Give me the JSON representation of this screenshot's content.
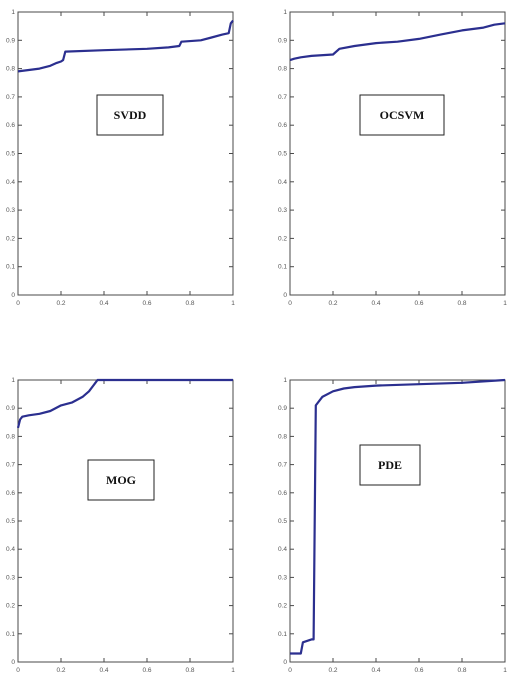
{
  "chart_data": [
    {
      "type": "line",
      "label": "SVDD",
      "xlim": [
        0,
        1
      ],
      "ylim": [
        0,
        1
      ],
      "xticks": [
        "0",
        "0.2",
        "0.4",
        "0.6",
        "0.8",
        "1"
      ],
      "yticks": [
        "0",
        "0.1",
        "0.2",
        "0.3",
        "0.4",
        "0.5",
        "0.6",
        "0.7",
        "0.8",
        "0.9",
        "1"
      ],
      "grid": false,
      "color": "#2b2f8f",
      "series": [
        {
          "x": [
            0,
            0.05,
            0.1,
            0.15,
            0.18,
            0.2,
            0.21,
            0.22,
            0.4,
            0.6,
            0.7,
            0.75,
            0.76,
            0.85,
            0.9,
            0.95,
            0.98,
            0.99,
            1.0
          ],
          "y": [
            0.79,
            0.795,
            0.8,
            0.81,
            0.82,
            0.825,
            0.83,
            0.86,
            0.865,
            0.87,
            0.875,
            0.88,
            0.895,
            0.9,
            0.91,
            0.92,
            0.925,
            0.96,
            0.97
          ]
        }
      ]
    },
    {
      "type": "line",
      "label": "OCSVM",
      "xlim": [
        0,
        1
      ],
      "ylim": [
        0,
        1
      ],
      "xticks": [
        "0",
        "0.2",
        "0.4",
        "0.6",
        "0.8",
        "1"
      ],
      "yticks": [
        "0",
        "0.1",
        "0.2",
        "0.3",
        "0.4",
        "0.5",
        "0.6",
        "0.7",
        "0.8",
        "0.9",
        "1"
      ],
      "grid": false,
      "color": "#2b2f8f",
      "series": [
        {
          "x": [
            0,
            0.02,
            0.05,
            0.1,
            0.2,
            0.23,
            0.3,
            0.4,
            0.5,
            0.6,
            0.7,
            0.8,
            0.9,
            0.95,
            1.0
          ],
          "y": [
            0.83,
            0.835,
            0.84,
            0.845,
            0.85,
            0.87,
            0.88,
            0.89,
            0.895,
            0.905,
            0.92,
            0.935,
            0.945,
            0.955,
            0.96
          ]
        }
      ]
    },
    {
      "type": "line",
      "label": "MOG",
      "xlim": [
        0,
        1
      ],
      "ylim": [
        0,
        1
      ],
      "xticks": [
        "0",
        "0.2",
        "0.4",
        "0.6",
        "0.8",
        "1"
      ],
      "yticks": [
        "0",
        "0.1",
        "0.2",
        "0.3",
        "0.4",
        "0.5",
        "0.6",
        "0.7",
        "0.8",
        "0.9",
        "1"
      ],
      "grid": false,
      "color": "#2b2f8f",
      "series": [
        {
          "x": [
            0,
            0.01,
            0.02,
            0.05,
            0.1,
            0.15,
            0.2,
            0.25,
            0.3,
            0.33,
            0.35,
            0.36,
            0.37,
            0.4,
            0.6,
            0.8,
            1.0
          ],
          "y": [
            0.83,
            0.86,
            0.87,
            0.875,
            0.88,
            0.89,
            0.91,
            0.92,
            0.94,
            0.96,
            0.98,
            0.99,
            1.0,
            1.0,
            1.0,
            1.0,
            1.0
          ]
        }
      ]
    },
    {
      "type": "line",
      "label": "PDE",
      "xlim": [
        0,
        1
      ],
      "ylim": [
        0,
        1
      ],
      "xticks": [
        "0",
        "0.2",
        "0.4",
        "0.6",
        "0.8",
        "1"
      ],
      "yticks": [
        "0",
        "0.1",
        "0.2",
        "0.3",
        "0.4",
        "0.5",
        "0.6",
        "0.7",
        "0.8",
        "0.9",
        "1"
      ],
      "grid": false,
      "color": "#2b2f8f",
      "series": [
        {
          "x": [
            0,
            0.05,
            0.06,
            0.1,
            0.11,
            0.12,
            0.13,
            0.15,
            0.2,
            0.25,
            0.3,
            0.4,
            0.6,
            0.8,
            0.9,
            1.0
          ],
          "y": [
            0.03,
            0.03,
            0.07,
            0.08,
            0.08,
            0.91,
            0.92,
            0.94,
            0.96,
            0.97,
            0.975,
            0.98,
            0.985,
            0.99,
            0.995,
            1.0
          ]
        }
      ]
    }
  ]
}
